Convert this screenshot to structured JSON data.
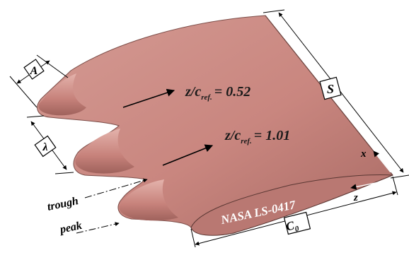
{
  "figure": {
    "colors": {
      "wing_fill": "#c9867f",
      "wing_shade": "#a86a64",
      "wing_highlight": "#e2b0a9",
      "line": "#000000",
      "airfoil_label": "#ffffff"
    },
    "labels": {
      "amplitude": "A",
      "wavelength": "λ",
      "span": "S",
      "root_chord_main": "C",
      "root_chord_sub": "0",
      "airfoil": "NASA LS-0417",
      "trough": "trough",
      "peak": "peak",
      "axis_x": "x",
      "axis_z": "z",
      "section1_main": "z/c",
      "section1_sub": "ref.",
      "section1_val": "= 0.52",
      "section2_main": "z/c",
      "section2_sub": "ref.",
      "section2_val": "= 1.01"
    }
  }
}
